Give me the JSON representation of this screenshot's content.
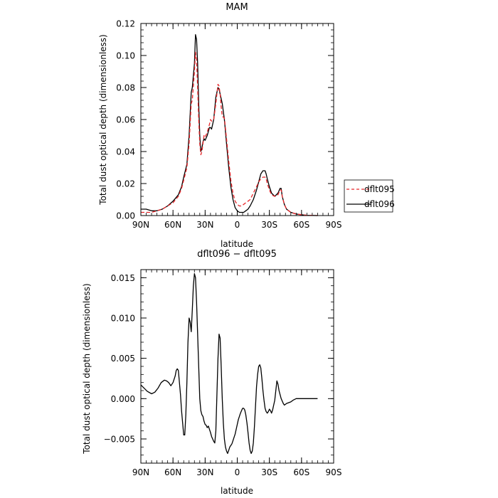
{
  "chart_data": [
    {
      "type": "line",
      "title": "MAM",
      "xlabel": "latitude",
      "ylabel": "Total dust optical depth (dimensionless)",
      "xlim": [
        90,
        -90
      ],
      "ylim": [
        0,
        0.12
      ],
      "x_ticks": [
        90,
        60,
        30,
        0,
        -30,
        -60,
        -90
      ],
      "x_tick_labels": [
        "90N",
        "60N",
        "30N",
        "0",
        "30S",
        "60S",
        "90S"
      ],
      "y_ticks": [
        0,
        0.02,
        0.04,
        0.06,
        0.08,
        0.1,
        0.12
      ],
      "y_tick_labels": [
        "0.00",
        "0.02",
        "0.04",
        "0.06",
        "0.08",
        "0.10",
        "0.12"
      ],
      "legend": {
        "placement": "outside-right",
        "entries": [
          {
            "label": "dflt095",
            "color": "#e8262a",
            "dash": "dashed"
          },
          {
            "label": "dflt096",
            "color": "#000000",
            "dash": "solid"
          }
        ]
      },
      "series": [
        {
          "name": "dflt096",
          "color": "#000000",
          "dash": "solid",
          "x": [
            90,
            85,
            80,
            75,
            70,
            65,
            60,
            55,
            52,
            50,
            47,
            45,
            43,
            42,
            40,
            39,
            38,
            37,
            36,
            35,
            34,
            33,
            32,
            31,
            30,
            28,
            26,
            25,
            24,
            22,
            20,
            18,
            17,
            16,
            15,
            14,
            12,
            10,
            8,
            6,
            4,
            2,
            0,
            -2,
            -4,
            -6,
            -8,
            -10,
            -12,
            -15,
            -18,
            -20,
            -22,
            -24,
            -26,
            -27,
            -28,
            -30,
            -32,
            -35,
            -38,
            -40,
            -41,
            -42,
            -44,
            -46,
            -50,
            -55,
            -60,
            -65,
            -70,
            -75
          ],
          "y": [
            0.004,
            0.004,
            0.003,
            0.003,
            0.004,
            0.006,
            0.009,
            0.013,
            0.018,
            0.024,
            0.032,
            0.05,
            0.077,
            0.08,
            0.095,
            0.113,
            0.11,
            0.095,
            0.07,
            0.05,
            0.04,
            0.042,
            0.046,
            0.048,
            0.047,
            0.05,
            0.055,
            0.055,
            0.054,
            0.06,
            0.074,
            0.08,
            0.079,
            0.076,
            0.073,
            0.07,
            0.06,
            0.045,
            0.03,
            0.018,
            0.01,
            0.005,
            0.003,
            0.002,
            0.002,
            0.002,
            0.003,
            0.004,
            0.006,
            0.01,
            0.016,
            0.021,
            0.026,
            0.028,
            0.028,
            0.026,
            0.023,
            0.018,
            0.014,
            0.012,
            0.014,
            0.017,
            0.017,
            0.012,
            0.007,
            0.004,
            0.002,
            0.001,
            0.0005,
            0.0002,
            0.0001,
            0.0
          ]
        },
        {
          "name": "dflt095",
          "color": "#e8262a",
          "dash": "dashed",
          "x": [
            90,
            85,
            80,
            75,
            70,
            65,
            60,
            55,
            52,
            50,
            47,
            45,
            43,
            42,
            40,
            39,
            38,
            37,
            36,
            35,
            34,
            33,
            32,
            31,
            30,
            28,
            26,
            25,
            24,
            22,
            20,
            18,
            17,
            16,
            15,
            14,
            12,
            10,
            8,
            6,
            4,
            2,
            0,
            -2,
            -4,
            -6,
            -8,
            -10,
            -12,
            -15,
            -18,
            -20,
            -22,
            -24,
            -26,
            -27,
            -28,
            -30,
            -32,
            -35,
            -38,
            -40,
            -41,
            -42,
            -44,
            -46,
            -50,
            -55,
            -60,
            -65,
            -70,
            -75
          ],
          "y": [
            0.002,
            0.002,
            0.002,
            0.003,
            0.004,
            0.006,
            0.008,
            0.012,
            0.017,
            0.022,
            0.03,
            0.045,
            0.07,
            0.072,
            0.09,
            0.102,
            0.097,
            0.08,
            0.06,
            0.045,
            0.038,
            0.04,
            0.045,
            0.05,
            0.049,
            0.052,
            0.057,
            0.06,
            0.059,
            0.06,
            0.07,
            0.082,
            0.081,
            0.076,
            0.068,
            0.062,
            0.061,
            0.048,
            0.034,
            0.022,
            0.014,
            0.009,
            0.007,
            0.006,
            0.006,
            0.007,
            0.008,
            0.009,
            0.01,
            0.014,
            0.018,
            0.021,
            0.023,
            0.024,
            0.024,
            0.023,
            0.02,
            0.016,
            0.013,
            0.012,
            0.013,
            0.016,
            0.016,
            0.012,
            0.007,
            0.004,
            0.002,
            0.001,
            0.0005,
            0.0002,
            0.0001,
            0.0
          ]
        }
      ]
    },
    {
      "type": "line",
      "title": "dflt096 − dflt095",
      "xlabel": "latitude",
      "ylabel": "Total dust optical depth (dimensionless)",
      "xlim": [
        90,
        -90
      ],
      "ylim": [
        -0.008,
        0.016
      ],
      "x_ticks": [
        90,
        60,
        30,
        0,
        -30,
        -60,
        -90
      ],
      "x_tick_labels": [
        "90N",
        "60N",
        "30N",
        "0",
        "30S",
        "60S",
        "90S"
      ],
      "y_ticks": [
        -0.005,
        0.0,
        0.005,
        0.01,
        0.015
      ],
      "y_tick_labels": [
        "−0.005",
        "0.000",
        "0.005",
        "0.010",
        "0.015"
      ],
      "series": [
        {
          "color": "#000000",
          "dash": "solid",
          "x": [
            90,
            87,
            84,
            80,
            77,
            74,
            71,
            68,
            66,
            64,
            62,
            60,
            58,
            57,
            56,
            55,
            54,
            53,
            52,
            51,
            50,
            49,
            48,
            47,
            46,
            45,
            44,
            43,
            42,
            41,
            40,
            39,
            38,
            37,
            36,
            35,
            34,
            33,
            32,
            31,
            30,
            29,
            28,
            27,
            26,
            25,
            24,
            23,
            22,
            21,
            20,
            19,
            18,
            17,
            16,
            15,
            14,
            13,
            12,
            11,
            10,
            9,
            8,
            7,
            6,
            5,
            4,
            3,
            2,
            1,
            0,
            -1,
            -2,
            -3,
            -4,
            -5,
            -6,
            -7,
            -8,
            -9,
            -10,
            -11,
            -12,
            -13,
            -14,
            -15,
            -16,
            -17,
            -18,
            -19,
            -20,
            -21,
            -22,
            -23,
            -24,
            -25,
            -26,
            -27,
            -28,
            -29,
            -30,
            -31,
            -32,
            -33,
            -34,
            -35,
            -36,
            -37,
            -38,
            -39,
            -40,
            -41,
            -42,
            -43,
            -44,
            -45,
            -46,
            -48,
            -50,
            -52,
            -55,
            -60,
            -65,
            -70,
            -75
          ],
          "y": [
            0.0017,
            0.0013,
            0.0009,
            0.0006,
            0.0008,
            0.0013,
            0.002,
            0.0023,
            0.0022,
            0.002,
            0.0016,
            0.002,
            0.0028,
            0.0035,
            0.0037,
            0.0035,
            0.002,
            0.0005,
            -0.0015,
            -0.003,
            -0.0045,
            -0.0045,
            -0.002,
            0.002,
            0.007,
            0.01,
            0.0095,
            0.0083,
            0.011,
            0.014,
            0.0155,
            0.015,
            0.012,
            0.008,
            0.004,
            0.0,
            -0.0015,
            -0.002,
            -0.0022,
            -0.0028,
            -0.0032,
            -0.0033,
            -0.0036,
            -0.0034,
            -0.0038,
            -0.0042,
            -0.0047,
            -0.005,
            -0.0053,
            -0.0055,
            -0.004,
            0.0005,
            0.005,
            0.008,
            0.0075,
            0.004,
            0.0,
            -0.003,
            -0.005,
            -0.006,
            -0.0065,
            -0.0068,
            -0.0064,
            -0.006,
            -0.0058,
            -0.0056,
            -0.0052,
            -0.0048,
            -0.0044,
            -0.0038,
            -0.0032,
            -0.0026,
            -0.0022,
            -0.0018,
            -0.0015,
            -0.0012,
            -0.0012,
            -0.0014,
            -0.002,
            -0.003,
            -0.0042,
            -0.0055,
            -0.0064,
            -0.0068,
            -0.0065,
            -0.0055,
            -0.0035,
            -0.001,
            0.0015,
            0.003,
            0.004,
            0.0042,
            0.0038,
            0.0025,
            0.001,
            -0.0002,
            -0.0012,
            -0.0016,
            -0.0018,
            -0.0016,
            -0.0013,
            -0.0015,
            -0.0018,
            -0.0014,
            -0.0008,
            -0.0002,
            0.001,
            0.0022,
            0.0018,
            0.001,
            0.0005,
            0.0,
            -0.0003,
            -0.0006,
            -0.0008,
            -0.0007,
            -0.0006,
            -0.0005,
            -0.0004,
            -0.0002,
            0.0,
            0.0,
            0.0,
            0.0,
            0.0
          ]
        }
      ]
    }
  ]
}
